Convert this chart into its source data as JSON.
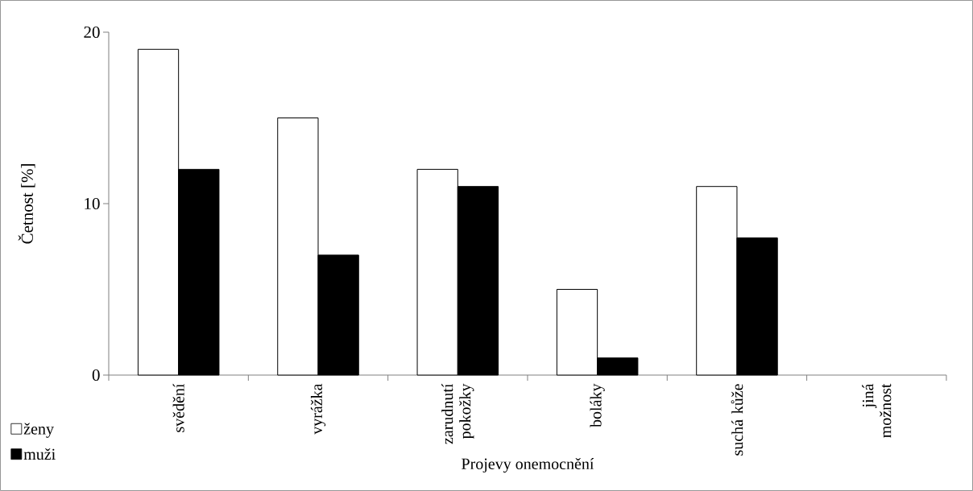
{
  "chart_data": {
    "type": "bar",
    "xlabel": "Projevy onemocnění",
    "ylabel": "Četnost [%]",
    "categories": [
      "svědění",
      "vyrážka",
      "zarudnutí pokožky",
      "boláky",
      "suchá kůže",
      "jiná možnost"
    ],
    "series": [
      {
        "name": "ženy",
        "color": "#ffffff",
        "values": [
          19,
          15,
          12,
          5,
          11,
          0
        ]
      },
      {
        "name": "muži",
        "color": "#000000",
        "values": [
          12,
          7,
          11,
          1,
          8,
          0
        ]
      }
    ],
    "ylim": [
      0,
      20
    ],
    "yticks": [
      0,
      10,
      20
    ],
    "legend": "bottom left"
  }
}
